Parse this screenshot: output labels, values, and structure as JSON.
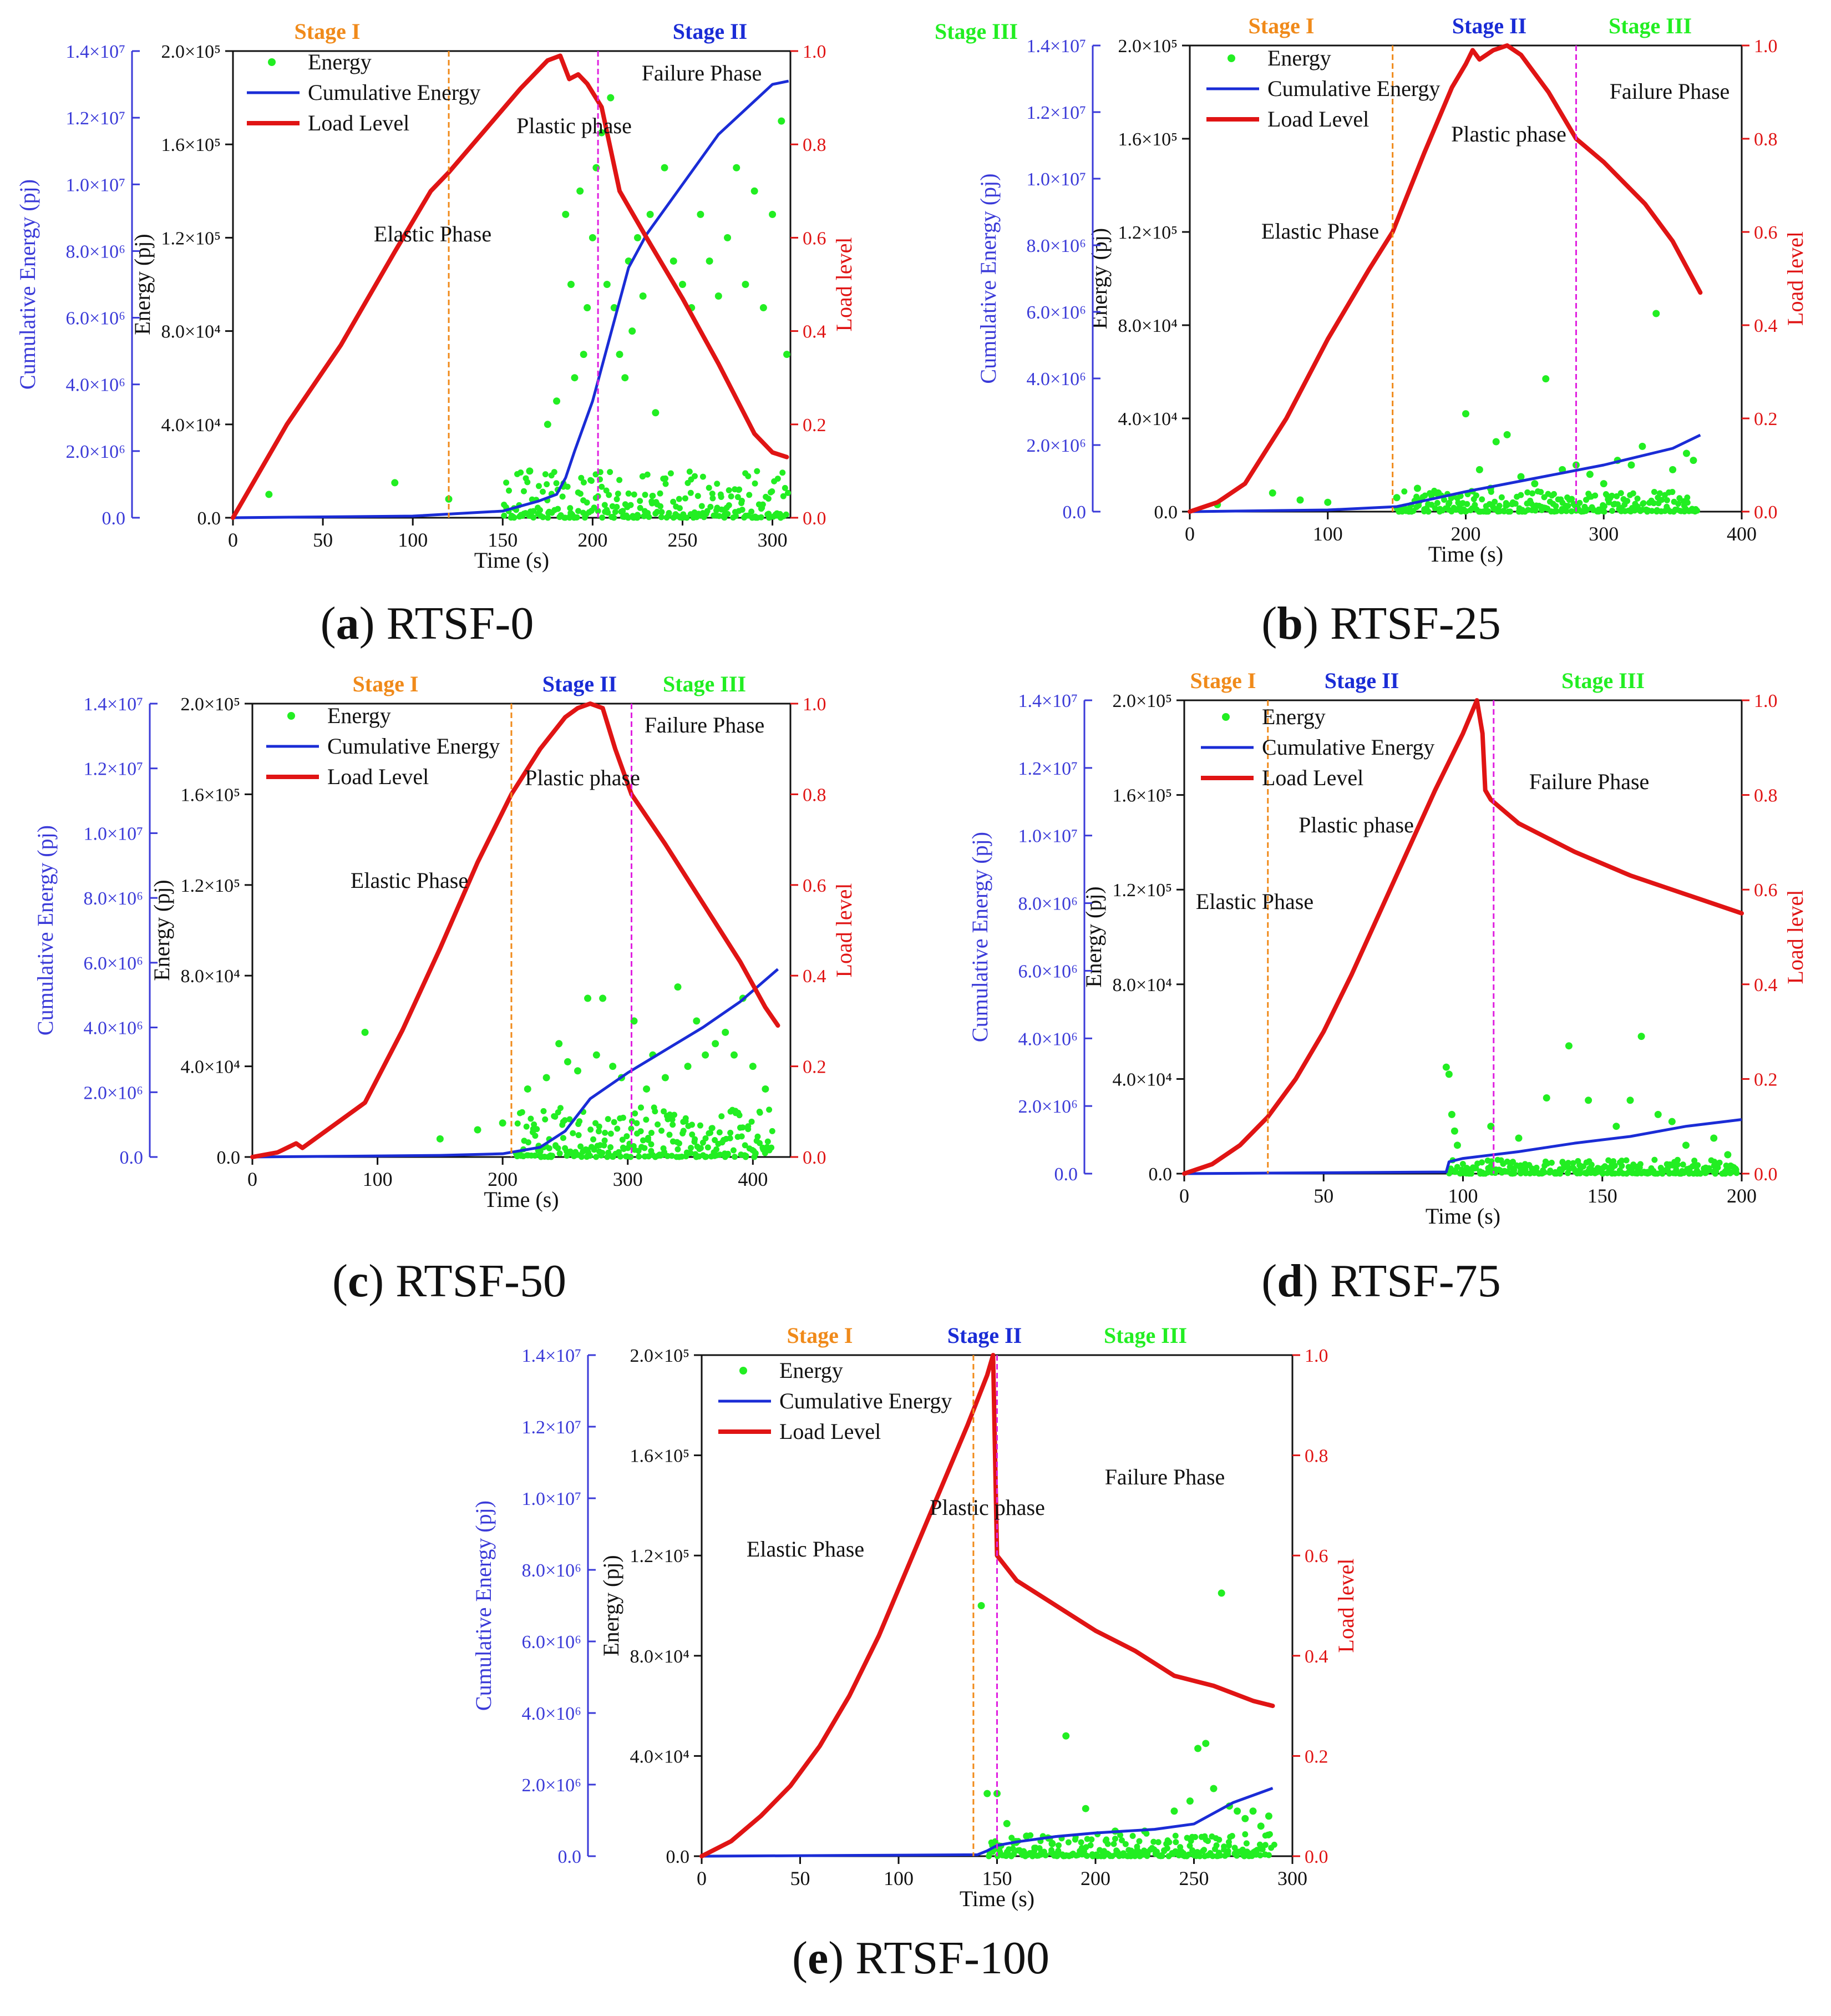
{
  "figure": {
    "legend_labels": {
      "energy": "Energy",
      "cumulative": "Cumulative Energy",
      "load": "Load Level"
    },
    "stage_labels": [
      "Stage I",
      "Stage II",
      "Stage III"
    ],
    "phase_labels": {
      "elastic": "Elastic Phase",
      "plastic": "Plastic phase",
      "failure": "Failure Phase"
    },
    "axis_titles": {
      "x": "Time (s)",
      "energy": "Energy (pj)",
      "cumulative": "Cumulative Energy (pj)",
      "load": "Load level"
    },
    "colors": {
      "energy": "#22ee22",
      "cumulative": "#1a2cd6",
      "load": "#e01414",
      "stage1_line": "#f08a1a",
      "stage2_line": "#e020e0",
      "stage1_text": "#f08a1a",
      "stage2_text": "#1a2cd6",
      "stage3_text": "#22ee22",
      "cumulative_axis": "#3a3ad8",
      "load_axis": "#e01414"
    }
  },
  "chart_data": [
    {
      "id": "a",
      "caption_letter": "a",
      "caption_name": "RTSF-0",
      "type": "line",
      "x_range": [
        0,
        310
      ],
      "x_ticks": [
        0,
        50,
        100,
        150,
        200,
        250,
        300
      ],
      "x_tick_labels": [
        "0",
        "50",
        "100",
        "150",
        "200",
        "250",
        "300"
      ],
      "energy_range": [
        0,
        200000
      ],
      "energy_ticks": [
        0.0,
        40000,
        80000,
        120000,
        160000,
        200000
      ],
      "energy_tick_labels": [
        "0.0",
        "4.0×10⁴",
        "8.0×10⁴",
        "1.2×10⁵",
        "1.6×10⁵",
        "2.0×10⁵"
      ],
      "cumulative_range": [
        0,
        14000000
      ],
      "cumulative_ticks": [
        0,
        2000000,
        4000000,
        6000000,
        8000000,
        10000000,
        12000000,
        14000000
      ],
      "cumulative_tick_labels": [
        "0.0",
        "2.0×10⁶",
        "4.0×10⁶",
        "6.0×10⁶",
        "8.0×10⁶",
        "1.0×10⁷",
        "1.2×10⁷",
        "1.4×10⁷"
      ],
      "load_range": [
        0,
        1.0
      ],
      "load_ticks": [
        0,
        0.2,
        0.4,
        0.6,
        0.8,
        1.0
      ],
      "load_tick_labels": [
        "0.0",
        "0.2",
        "0.4",
        "0.6",
        "0.8",
        "1.0"
      ],
      "stage_boundaries": [
        120,
        203
      ],
      "load_series": {
        "x": [
          0,
          30,
          60,
          90,
          110,
          120,
          140,
          160,
          175,
          182,
          187,
          192,
          197,
          205,
          215,
          230,
          250,
          270,
          290,
          300,
          308
        ],
        "y": [
          0,
          0.2,
          0.37,
          0.57,
          0.7,
          0.74,
          0.83,
          0.92,
          0.98,
          0.99,
          0.94,
          0.95,
          0.93,
          0.88,
          0.7,
          0.6,
          0.47,
          0.33,
          0.18,
          0.14,
          0.13
        ]
      },
      "cumulative_series": {
        "x": [
          0,
          100,
          150,
          170,
          180,
          185,
          190,
          200,
          210,
          220,
          230,
          250,
          270,
          290,
          300,
          309
        ],
        "y": [
          0,
          50000,
          200000,
          500000,
          700000,
          1200000,
          2000000,
          3500000,
          5500000,
          7500000,
          8500000,
          10000000,
          11500000,
          12500000,
          13000000,
          13100000
        ]
      },
      "energy_scatter": {
        "x": [
          20,
          90,
          120,
          165,
          175,
          180,
          185,
          188,
          190,
          193,
          195,
          197,
          200,
          202,
          205,
          208,
          210,
          212,
          215,
          218,
          220,
          222,
          225,
          228,
          232,
          235,
          240,
          245,
          250,
          255,
          260,
          265,
          270,
          275,
          280,
          285,
          290,
          295,
          300,
          305,
          308
        ],
        "y": [
          10000,
          15000,
          8000,
          20000,
          40000,
          50000,
          130000,
          100000,
          60000,
          140000,
          70000,
          90000,
          120000,
          150000,
          165000,
          100000,
          180000,
          90000,
          70000,
          60000,
          110000,
          80000,
          120000,
          95000,
          130000,
          45000,
          150000,
          110000,
          100000,
          90000,
          130000,
          110000,
          95000,
          120000,
          150000,
          100000,
          140000,
          90000,
          130000,
          170000,
          70000
        ]
      },
      "energy_band": {
        "x_start": 150,
        "x_end": 308,
        "max": 20000
      }
    },
    {
      "id": "b",
      "caption_letter": "b",
      "caption_name": "RTSF-25",
      "type": "line",
      "x_range": [
        0,
        400
      ],
      "x_ticks": [
        0,
        100,
        200,
        300,
        400
      ],
      "x_tick_labels": [
        "0",
        "100",
        "200",
        "300",
        "400"
      ],
      "energy_range": [
        0,
        200000
      ],
      "energy_ticks": [
        0.0,
        40000,
        80000,
        120000,
        160000,
        200000
      ],
      "energy_tick_labels": [
        "0.0",
        "4.0×10⁴",
        "8.0×10⁴",
        "1.2×10⁵",
        "1.6×10⁵",
        "2.0×10⁵"
      ],
      "cumulative_range": [
        0,
        14000000
      ],
      "cumulative_ticks": [
        0,
        2000000,
        4000000,
        6000000,
        8000000,
        10000000,
        12000000,
        14000000
      ],
      "cumulative_tick_labels": [
        "0.0",
        "2.0×10⁶",
        "4.0×10⁶",
        "6.0×10⁶",
        "8.0×10⁶",
        "1.0×10⁷",
        "1.2×10⁷",
        "1.4×10⁷"
      ],
      "load_range": [
        0,
        1.0
      ],
      "load_ticks": [
        0,
        0.2,
        0.4,
        0.6,
        0.8,
        1.0
      ],
      "load_tick_labels": [
        "0.0",
        "0.2",
        "0.4",
        "0.6",
        "0.8",
        "1.0"
      ],
      "stage_boundaries": [
        147,
        280
      ],
      "load_series": {
        "x": [
          0,
          20,
          40,
          70,
          100,
          130,
          147,
          170,
          190,
          200,
          205,
          210,
          220,
          230,
          240,
          260,
          280,
          300,
          330,
          350,
          370
        ],
        "y": [
          0,
          0.02,
          0.06,
          0.2,
          0.37,
          0.52,
          0.6,
          0.77,
          0.91,
          0.96,
          0.99,
          0.97,
          0.99,
          1.0,
          0.98,
          0.9,
          0.8,
          0.75,
          0.66,
          0.58,
          0.47
        ]
      },
      "cumulative_series": {
        "x": [
          0,
          100,
          150,
          200,
          250,
          300,
          350,
          370
        ],
        "y": [
          0,
          50000,
          150000,
          600000,
          1000000,
          1400000,
          1900000,
          2300000
        ]
      },
      "energy_scatter": {
        "x": [
          20,
          60,
          80,
          100,
          150,
          165,
          180,
          200,
          210,
          218,
          222,
          230,
          240,
          250,
          258,
          270,
          280,
          290,
          300,
          310,
          320,
          328,
          338,
          350,
          360,
          365
        ],
        "y": [
          3000,
          8000,
          5000,
          4000,
          6000,
          10000,
          8000,
          42000,
          18000,
          10000,
          30000,
          33000,
          15000,
          12000,
          57000,
          18000,
          20000,
          16000,
          12000,
          22000,
          20000,
          28000,
          85000,
          18000,
          25000,
          22000
        ]
      },
      "energy_band": {
        "x_start": 150,
        "x_end": 368,
        "max": 9000
      }
    },
    {
      "id": "c",
      "caption_letter": "c",
      "caption_name": "RTSF-50",
      "type": "line",
      "x_range": [
        0,
        430
      ],
      "x_ticks": [
        0,
        100,
        200,
        300,
        400
      ],
      "x_tick_labels": [
        "0",
        "100",
        "200",
        "300",
        "400"
      ],
      "energy_range": [
        0,
        200000
      ],
      "energy_ticks": [
        0.0,
        40000,
        80000,
        120000,
        160000,
        200000
      ],
      "energy_tick_labels": [
        "0.0",
        "4.0×10⁴",
        "8.0×10⁴",
        "1.2×10⁵",
        "1.6×10⁵",
        "2.0×10⁵"
      ],
      "cumulative_range": [
        0,
        14000000
      ],
      "cumulative_ticks": [
        0,
        2000000,
        4000000,
        6000000,
        8000000,
        10000000,
        12000000,
        14000000
      ],
      "cumulative_tick_labels": [
        "0.0",
        "2.0×10⁶",
        "4.0×10⁶",
        "6.0×10⁶",
        "8.0×10⁶",
        "1.0×10⁷",
        "1.2×10⁷",
        "1.4×10⁷"
      ],
      "load_range": [
        0,
        1.0
      ],
      "load_ticks": [
        0,
        0.2,
        0.4,
        0.6,
        0.8,
        1.0
      ],
      "load_tick_labels": [
        "0.0",
        "0.2",
        "0.4",
        "0.6",
        "0.8",
        "1.0"
      ],
      "stage_boundaries": [
        207,
        303
      ],
      "load_series": {
        "x": [
          0,
          20,
          35,
          40,
          45,
          60,
          90,
          120,
          150,
          180,
          207,
          230,
          250,
          260,
          270,
          280,
          290,
          303,
          330,
          360,
          390,
          410,
          420
        ],
        "y": [
          0,
          0.01,
          0.03,
          0.02,
          0.03,
          0.06,
          0.12,
          0.28,
          0.46,
          0.65,
          0.8,
          0.9,
          0.97,
          0.99,
          1.0,
          0.99,
          0.9,
          0.8,
          0.69,
          0.56,
          0.43,
          0.33,
          0.29
        ]
      },
      "cumulative_series": {
        "x": [
          0,
          150,
          200,
          230,
          250,
          270,
          300,
          330,
          360,
          390,
          420
        ],
        "y": [
          0,
          50000,
          100000,
          300000,
          800000,
          1800000,
          2600000,
          3300000,
          4000000,
          4800000,
          5800000
        ]
      },
      "energy_scatter": {
        "x": [
          90,
          150,
          180,
          200,
          220,
          235,
          245,
          252,
          260,
          268,
          275,
          280,
          288,
          295,
          305,
          315,
          320,
          330,
          340,
          348,
          355,
          362,
          370,
          378,
          385,
          392,
          400,
          410
        ],
        "y": [
          55000,
          8000,
          12000,
          15000,
          30000,
          35000,
          50000,
          42000,
          38000,
          70000,
          45000,
          70000,
          40000,
          35000,
          60000,
          30000,
          45000,
          35000,
          75000,
          40000,
          60000,
          45000,
          50000,
          55000,
          45000,
          70000,
          40000,
          30000
        ]
      },
      "energy_band": {
        "x_start": 210,
        "x_end": 415,
        "max": 22000
      }
    },
    {
      "id": "d",
      "caption_letter": "d",
      "caption_name": "RTSF-75",
      "type": "line",
      "x_range": [
        0,
        200
      ],
      "x_ticks": [
        0,
        50,
        100,
        150,
        200
      ],
      "x_tick_labels": [
        "0",
        "50",
        "100",
        "150",
        "200"
      ],
      "energy_range": [
        0,
        200000
      ],
      "energy_ticks": [
        0.0,
        40000,
        80000,
        120000,
        160000,
        200000
      ],
      "energy_tick_labels": [
        "0.0",
        "4.0×10⁴",
        "8.0×10⁴",
        "1.2×10⁵",
        "1.6×10⁵",
        "2.0×10⁵"
      ],
      "cumulative_range": [
        0,
        14000000
      ],
      "cumulative_ticks": [
        0,
        2000000,
        4000000,
        6000000,
        8000000,
        10000000,
        12000000,
        14000000
      ],
      "cumulative_tick_labels": [
        "0.0",
        "2.0×10⁶",
        "4.0×10⁶",
        "6.0×10⁶",
        "8.0×10⁶",
        "1.0×10⁷",
        "1.2×10⁷",
        "1.4×10⁷"
      ],
      "load_range": [
        0,
        1.0
      ],
      "load_ticks": [
        0,
        0.2,
        0.4,
        0.6,
        0.8,
        1.0
      ],
      "load_tick_labels": [
        "0.0",
        "0.2",
        "0.4",
        "0.6",
        "0.8",
        "1.0"
      ],
      "stage_boundaries": [
        30,
        111
      ],
      "load_series": {
        "x": [
          0,
          10,
          20,
          30,
          40,
          50,
          60,
          70,
          80,
          90,
          100,
          105,
          107,
          108,
          110,
          120,
          140,
          160,
          180,
          200
        ],
        "y": [
          0,
          0.02,
          0.06,
          0.12,
          0.2,
          0.3,
          0.42,
          0.55,
          0.68,
          0.81,
          0.93,
          1.0,
          0.93,
          0.81,
          0.79,
          0.74,
          0.68,
          0.63,
          0.59,
          0.55
        ]
      },
      "cumulative_series": {
        "x": [
          0,
          94,
          95,
          100,
          120,
          140,
          160,
          180,
          200
        ],
        "y": [
          0,
          50000,
          350000,
          450000,
          650000,
          900000,
          1100000,
          1400000,
          1600000
        ]
      },
      "energy_scatter": {
        "x": [
          94,
          95,
          96,
          97,
          98,
          110,
          120,
          130,
          138,
          145,
          155,
          160,
          164,
          170,
          175,
          180,
          190,
          195
        ],
        "y": [
          45000,
          42000,
          25000,
          18000,
          12000,
          20000,
          15000,
          32000,
          54000,
          31000,
          20000,
          31000,
          58000,
          25000,
          22000,
          12000,
          15000,
          8000
        ]
      },
      "energy_band": {
        "x_start": 95,
        "x_end": 198,
        "max": 6000
      }
    },
    {
      "id": "e",
      "caption_letter": "e",
      "caption_name": "RTSF-100",
      "type": "line",
      "x_range": [
        0,
        300
      ],
      "x_ticks": [
        0,
        50,
        100,
        150,
        200,
        250,
        300
      ],
      "x_tick_labels": [
        "0",
        "50",
        "100",
        "150",
        "200",
        "250",
        "300"
      ],
      "energy_range": [
        0,
        200000
      ],
      "energy_ticks": [
        0.0,
        40000,
        80000,
        120000,
        160000,
        200000
      ],
      "energy_tick_labels": [
        "0.0",
        "4.0×10⁴",
        "8.0×10⁴",
        "1.2×10⁵",
        "1.6×10⁵",
        "2.0×10⁵"
      ],
      "cumulative_range": [
        0,
        14000000
      ],
      "cumulative_ticks": [
        0,
        2000000,
        4000000,
        6000000,
        8000000,
        10000000,
        12000000,
        14000000
      ],
      "cumulative_tick_labels": [
        "0.0",
        "2.0×10⁶",
        "4.0×10⁶",
        "6.0×10⁶",
        "8.0×10⁶",
        "1.0×10⁷",
        "1.2×10⁷",
        "1.4×10⁷"
      ],
      "load_range": [
        0,
        1.0
      ],
      "load_ticks": [
        0,
        0.2,
        0.4,
        0.6,
        0.8,
        1.0
      ],
      "load_tick_labels": [
        "0.0",
        "0.2",
        "0.4",
        "0.6",
        "0.8",
        "1.0"
      ],
      "stage_boundaries": [
        138,
        150
      ],
      "load_series": {
        "x": [
          0,
          15,
          30,
          45,
          60,
          75,
          90,
          105,
          120,
          135,
          145,
          148,
          149,
          150,
          160,
          180,
          200,
          220,
          240,
          260,
          280,
          290
        ],
        "y": [
          0,
          0.03,
          0.08,
          0.14,
          0.22,
          0.32,
          0.44,
          0.58,
          0.72,
          0.86,
          0.96,
          1.0,
          0.8,
          0.6,
          0.55,
          0.5,
          0.45,
          0.41,
          0.36,
          0.34,
          0.31,
          0.3
        ]
      },
      "cumulative_series": {
        "x": [
          0,
          140,
          145,
          150,
          160,
          180,
          200,
          230,
          250,
          260,
          270,
          290
        ],
        "y": [
          0,
          40000,
          150000,
          300000,
          400000,
          550000,
          650000,
          750000,
          900000,
          1200000,
          1500000,
          1900000
        ]
      },
      "energy_scatter": {
        "x": [
          142,
          145,
          150,
          155,
          165,
          178,
          185,
          195,
          210,
          225,
          240,
          248,
          252,
          256,
          260,
          264,
          268,
          272,
          276,
          280,
          284,
          288
        ],
        "y": [
          100000,
          25000,
          25000,
          13000,
          8000,
          5000,
          48000,
          19000,
          10000,
          10000,
          18000,
          22000,
          43000,
          45000,
          27000,
          105000,
          20000,
          18000,
          15000,
          18000,
          12000,
          16000
        ]
      },
      "energy_band": {
        "x_start": 145,
        "x_end": 290,
        "max": 9000
      }
    }
  ]
}
